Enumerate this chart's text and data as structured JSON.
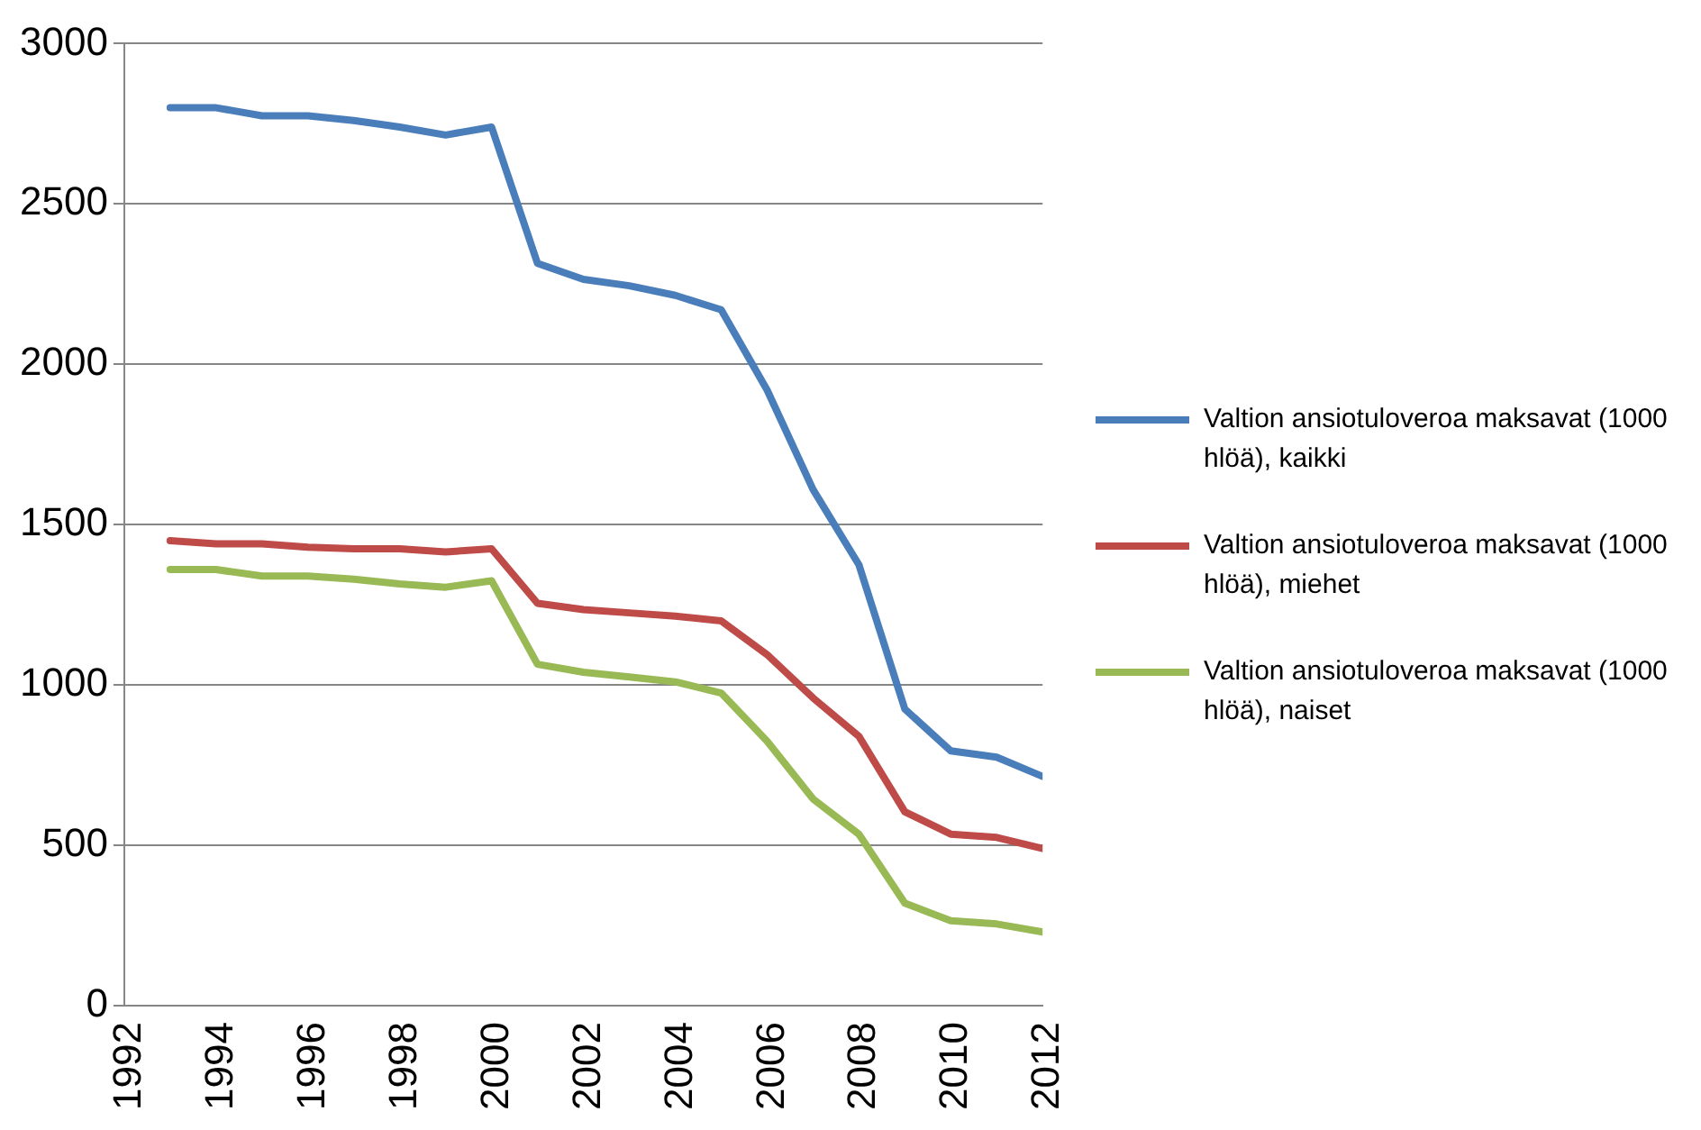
{
  "chart_data": {
    "type": "line",
    "x": [
      1993,
      1994,
      1995,
      1996,
      1997,
      1998,
      1999,
      2000,
      2001,
      2002,
      2003,
      2004,
      2005,
      2006,
      2007,
      2008,
      2009,
      2010,
      2011,
      2012
    ],
    "series": [
      {
        "name": "Valtion ansiotuloveroa maksavat (1000 hlöä), kaikki",
        "color": "#4a7ebb",
        "values": [
          2800,
          2800,
          2775,
          2775,
          2760,
          2740,
          2715,
          2740,
          2315,
          2265,
          2245,
          2215,
          2170,
          1920,
          1610,
          1375,
          925,
          795,
          775,
          715
        ]
      },
      {
        "name": "Valtion ansiotuloveroa maksavat (1000 hlöä), miehet",
        "color": "#be4b48",
        "values": [
          1450,
          1440,
          1440,
          1430,
          1425,
          1425,
          1415,
          1425,
          1255,
          1235,
          1225,
          1215,
          1200,
          1095,
          960,
          840,
          605,
          535,
          525,
          490
        ]
      },
      {
        "name": "Valtion ansiotuloveroa maksavat (1000 hlöä), naiset",
        "color": "#98b954",
        "values": [
          1360,
          1360,
          1340,
          1340,
          1330,
          1315,
          1305,
          1325,
          1065,
          1040,
          1025,
          1010,
          975,
          825,
          645,
          535,
          320,
          265,
          255,
          230
        ]
      }
    ],
    "xlim": [
      1992,
      2012
    ],
    "xticks": [
      1992,
      1994,
      1996,
      1998,
      2000,
      2002,
      2004,
      2006,
      2008,
      2010,
      2012
    ],
    "ylim": [
      0,
      3000
    ],
    "yticks": [
      0,
      500,
      1000,
      1500,
      2000,
      2500,
      3000
    ],
    "grid": "y",
    "legend": "right",
    "marker": "none",
    "line_style": "solid"
  }
}
